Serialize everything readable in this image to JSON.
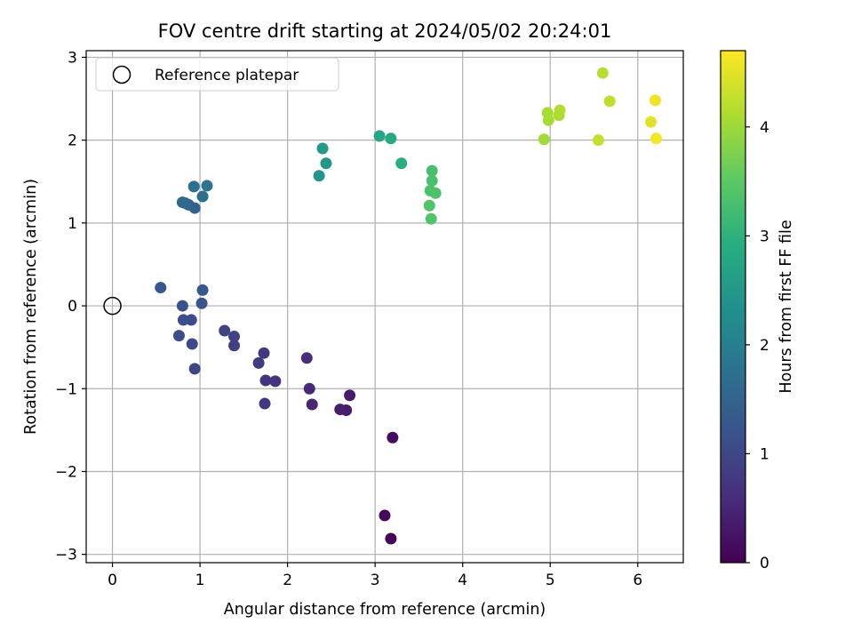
{
  "chart_data": {
    "type": "scatter",
    "title": "FOV centre drift starting at 2024/05/02 20:24:01",
    "xlabel": "Angular distance from reference (arcmin)",
    "ylabel": "Rotation from reference (arcmin)",
    "xlim": [
      -0.3,
      6.52
    ],
    "ylim": [
      -3.1,
      3.08
    ],
    "xticks": [
      0,
      1,
      2,
      3,
      4,
      5,
      6
    ],
    "yticks": [
      -3,
      -2,
      -1,
      0,
      1,
      2,
      3
    ],
    "xtick_labels": [
      "0",
      "1",
      "2",
      "3",
      "4",
      "5",
      "6"
    ],
    "ytick_labels": [
      "−3",
      "−2",
      "−1",
      "0",
      "1",
      "2",
      "3"
    ],
    "grid": true,
    "legend": {
      "position": "top-left",
      "entries": [
        "Reference platepar"
      ]
    },
    "reference": {
      "x": 0,
      "y": 0,
      "marker": "open-circle",
      "color": "#000000"
    },
    "colormap": "viridis",
    "colorbar": {
      "label": "Hours from first FF file",
      "range": [
        0,
        4.7
      ],
      "ticks": [
        0,
        1,
        2,
        3,
        4
      ],
      "tick_labels": [
        "0",
        "1",
        "2",
        "3",
        "4"
      ]
    },
    "points": [
      {
        "x": 3.18,
        "y": -2.81,
        "c": 0.05
      },
      {
        "x": 3.11,
        "y": -2.53,
        "c": 0.1
      },
      {
        "x": 3.2,
        "y": -1.59,
        "c": 0.15
      },
      {
        "x": 2.71,
        "y": -1.08,
        "c": 0.35
      },
      {
        "x": 2.67,
        "y": -1.26,
        "c": 0.38
      },
      {
        "x": 2.6,
        "y": -1.25,
        "c": 0.4
      },
      {
        "x": 2.28,
        "y": -1.19,
        "c": 0.5
      },
      {
        "x": 2.25,
        "y": -1.0,
        "c": 0.55
      },
      {
        "x": 2.22,
        "y": -0.63,
        "c": 0.6
      },
      {
        "x": 1.86,
        "y": -0.91,
        "c": 0.7
      },
      {
        "x": 1.75,
        "y": -0.9,
        "c": 0.72
      },
      {
        "x": 1.74,
        "y": -1.18,
        "c": 0.75
      },
      {
        "x": 1.73,
        "y": -0.57,
        "c": 0.8
      },
      {
        "x": 1.67,
        "y": -0.69,
        "c": 0.82
      },
      {
        "x": 1.39,
        "y": -0.48,
        "c": 0.9
      },
      {
        "x": 1.39,
        "y": -0.37,
        "c": 0.93
      },
      {
        "x": 1.28,
        "y": -0.3,
        "c": 0.97
      },
      {
        "x": 0.94,
        "y": -0.76,
        "c": 1.0
      },
      {
        "x": 0.91,
        "y": -0.46,
        "c": 1.05
      },
      {
        "x": 0.9,
        "y": -0.17,
        "c": 1.1
      },
      {
        "x": 0.76,
        "y": -0.36,
        "c": 1.12
      },
      {
        "x": 0.81,
        "y": -0.17,
        "c": 1.15
      },
      {
        "x": 0.8,
        "y": 0.0,
        "c": 1.2
      },
      {
        "x": 1.02,
        "y": 0.03,
        "c": 1.25
      },
      {
        "x": 1.03,
        "y": 0.19,
        "c": 1.28
      },
      {
        "x": 0.55,
        "y": 0.22,
        "c": 1.3
      },
      {
        "x": 0.94,
        "y": 1.18,
        "c": 1.5
      },
      {
        "x": 0.87,
        "y": 1.22,
        "c": 1.55
      },
      {
        "x": 0.8,
        "y": 1.25,
        "c": 1.6
      },
      {
        "x": 0.83,
        "y": 1.24,
        "c": 1.62
      },
      {
        "x": 1.03,
        "y": 1.32,
        "c": 1.7
      },
      {
        "x": 0.93,
        "y": 1.44,
        "c": 1.75
      },
      {
        "x": 1.08,
        "y": 1.45,
        "c": 1.8
      },
      {
        "x": 2.36,
        "y": 1.57,
        "c": 2.45
      },
      {
        "x": 2.44,
        "y": 1.72,
        "c": 2.5
      },
      {
        "x": 2.4,
        "y": 1.9,
        "c": 2.55
      },
      {
        "x": 3.05,
        "y": 2.05,
        "c": 2.8
      },
      {
        "x": 3.18,
        "y": 2.02,
        "c": 2.85
      },
      {
        "x": 3.3,
        "y": 1.72,
        "c": 2.95
      },
      {
        "x": 3.65,
        "y": 1.63,
        "c": 3.3
      },
      {
        "x": 3.65,
        "y": 1.51,
        "c": 3.33
      },
      {
        "x": 3.63,
        "y": 1.39,
        "c": 3.36
      },
      {
        "x": 3.69,
        "y": 1.36,
        "c": 3.38
      },
      {
        "x": 3.62,
        "y": 1.21,
        "c": 3.4
      },
      {
        "x": 3.64,
        "y": 1.05,
        "c": 3.42
      },
      {
        "x": 4.93,
        "y": 2.01,
        "c": 4.05
      },
      {
        "x": 4.98,
        "y": 2.24,
        "c": 4.08
      },
      {
        "x": 4.97,
        "y": 2.33,
        "c": 4.1
      },
      {
        "x": 5.1,
        "y": 2.3,
        "c": 4.12
      },
      {
        "x": 5.11,
        "y": 2.36,
        "c": 4.15
      },
      {
        "x": 5.55,
        "y": 2.0,
        "c": 4.3
      },
      {
        "x": 5.6,
        "y": 2.81,
        "c": 4.2
      },
      {
        "x": 5.68,
        "y": 2.47,
        "c": 4.25
      },
      {
        "x": 6.15,
        "y": 2.22,
        "c": 4.5
      },
      {
        "x": 6.2,
        "y": 2.48,
        "c": 4.6
      },
      {
        "x": 6.21,
        "y": 2.02,
        "c": 4.65
      }
    ]
  }
}
